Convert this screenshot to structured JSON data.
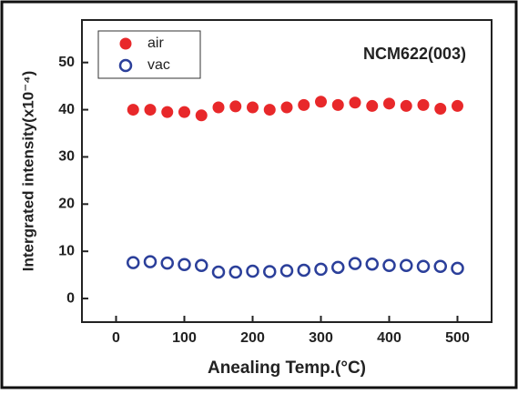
{
  "chart_data": {
    "type": "scatter",
    "annotation": "NCM622(003)",
    "x_label": "Anealing Temp.(°C)",
    "y_label": "Intergrated intensity(x10⁻⁴)",
    "x": [
      25,
      50,
      75,
      100,
      125,
      150,
      175,
      200,
      225,
      250,
      275,
      300,
      325,
      350,
      375,
      400,
      425,
      450,
      475,
      500
    ],
    "series": [
      {
        "name": "air",
        "color": "#e8282a",
        "filled": true,
        "values": [
          40,
          40,
          39.5,
          39.5,
          38.8,
          40.5,
          40.7,
          40.5,
          40,
          40.5,
          41,
          41.7,
          41,
          41.5,
          40.8,
          41.3,
          40.8,
          41,
          40.2,
          40.8
        ]
      },
      {
        "name": "vac",
        "color": "#2b3f9a",
        "filled": false,
        "values": [
          7.6,
          7.8,
          7.5,
          7.2,
          7,
          5.6,
          5.6,
          5.8,
          5.7,
          5.9,
          6,
          6.2,
          6.6,
          7.4,
          7.3,
          7,
          7,
          6.8,
          6.8,
          6.4
        ]
      }
    ],
    "xlim": [
      -50,
      550
    ],
    "ylim": [
      -5,
      59
    ],
    "xticks": [
      0,
      100,
      200,
      300,
      400,
      500
    ],
    "yticks": [
      0,
      10,
      20,
      30,
      40,
      50
    ],
    "legend": "top-left"
  }
}
